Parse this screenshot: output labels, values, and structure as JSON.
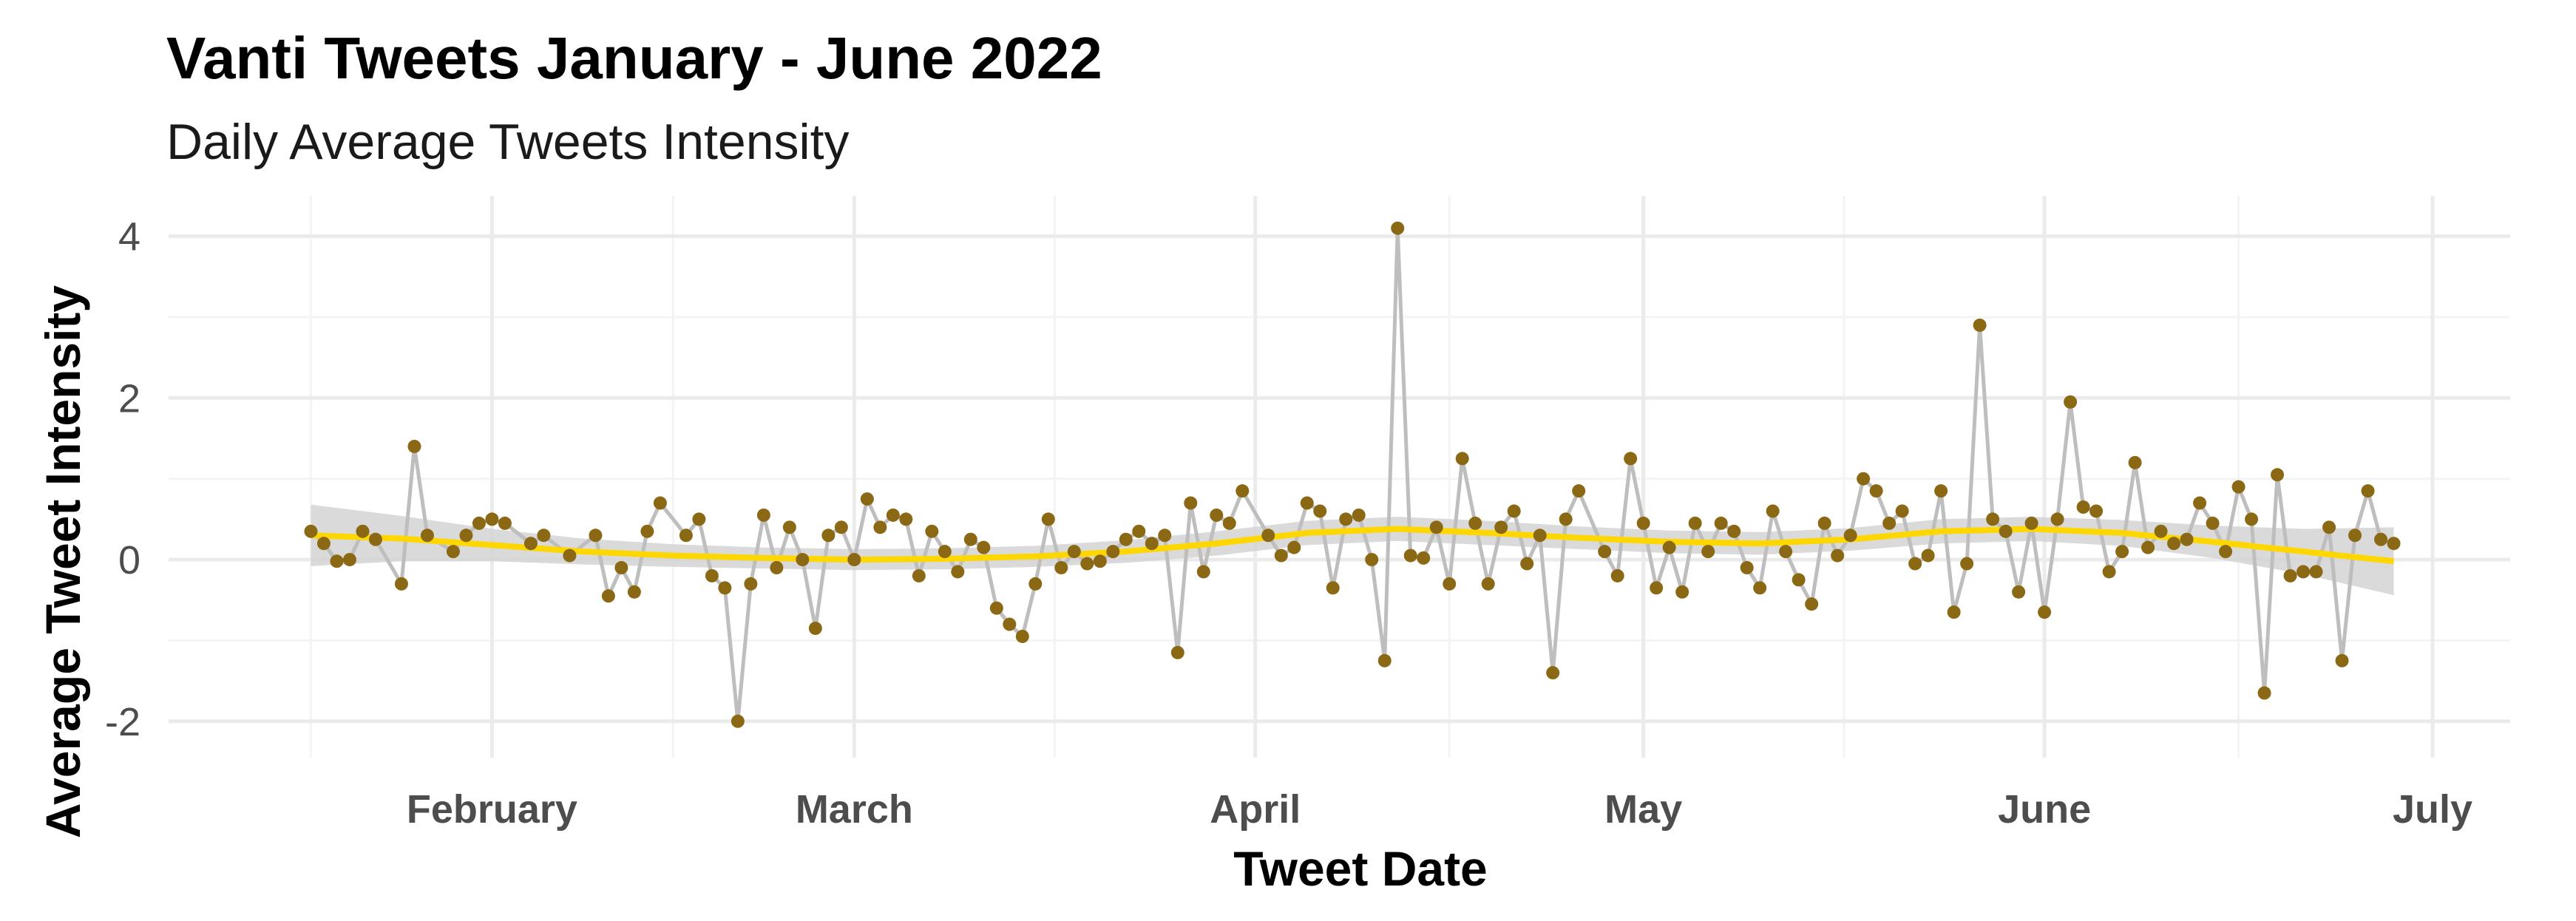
{
  "chart_data": {
    "type": "line",
    "title": "Vanti Tweets January - June 2022",
    "subtitle": "Daily Average Tweets Intensity",
    "xlabel": "Tweet Date",
    "ylabel": "Average Tweet Intensity",
    "xlim": [
      "2022-01-07",
      "2022-07-07"
    ],
    "ylim": [
      -2.45,
      4.5
    ],
    "x_ticks": [
      {
        "date": "2022-02-01",
        "label": "February"
      },
      {
        "date": "2022-03-01",
        "label": "March"
      },
      {
        "date": "2022-04-01",
        "label": "April"
      },
      {
        "date": "2022-05-01",
        "label": "May"
      },
      {
        "date": "2022-06-01",
        "label": "June"
      },
      {
        "date": "2022-07-01",
        "label": "July"
      }
    ],
    "y_ticks": [
      -2,
      0,
      2,
      4
    ],
    "grid": true,
    "colors": {
      "points": "#8B6914",
      "line": "#BEBEBE",
      "trend": "#FFD700",
      "band": "#D3D3D3",
      "grid_major": "#EBEBEB",
      "grid_minor": "#F4F4F4"
    },
    "series": [
      {
        "kind": "daily",
        "points": [
          [
            "2022-01-18",
            0.35
          ],
          [
            "2022-01-19",
            0.2
          ],
          [
            "2022-01-20",
            -0.02
          ],
          [
            "2022-01-21",
            0.0
          ],
          [
            "2022-01-22",
            0.35
          ],
          [
            "2022-01-23",
            0.25
          ],
          [
            "2022-01-25",
            -0.3
          ],
          [
            "2022-01-26",
            1.4
          ],
          [
            "2022-01-27",
            0.3
          ],
          [
            "2022-01-29",
            0.1
          ],
          [
            "2022-01-30",
            0.3
          ],
          [
            "2022-01-31",
            0.45
          ],
          [
            "2022-02-01",
            0.5
          ],
          [
            "2022-02-02",
            0.45
          ],
          [
            "2022-02-04",
            0.2
          ],
          [
            "2022-02-05",
            0.3
          ],
          [
            "2022-02-07",
            0.05
          ],
          [
            "2022-02-09",
            0.3
          ],
          [
            "2022-02-10",
            -0.45
          ],
          [
            "2022-02-11",
            -0.1
          ],
          [
            "2022-02-12",
            -0.4
          ],
          [
            "2022-02-13",
            0.35
          ],
          [
            "2022-02-14",
            0.7
          ],
          [
            "2022-02-16",
            0.3
          ],
          [
            "2022-02-17",
            0.5
          ],
          [
            "2022-02-18",
            -0.2
          ],
          [
            "2022-02-19",
            -0.35
          ],
          [
            "2022-02-20",
            -2.0
          ],
          [
            "2022-02-21",
            -0.3
          ],
          [
            "2022-02-22",
            0.55
          ],
          [
            "2022-02-23",
            -0.1
          ],
          [
            "2022-02-24",
            0.4
          ],
          [
            "2022-02-25",
            0.0
          ],
          [
            "2022-02-26",
            -0.85
          ],
          [
            "2022-02-27",
            0.3
          ],
          [
            "2022-02-28",
            0.4
          ],
          [
            "2022-03-01",
            0.0
          ],
          [
            "2022-03-02",
            0.75
          ],
          [
            "2022-03-03",
            0.4
          ],
          [
            "2022-03-04",
            0.55
          ],
          [
            "2022-03-05",
            0.5
          ],
          [
            "2022-03-06",
            -0.2
          ],
          [
            "2022-03-07",
            0.35
          ],
          [
            "2022-03-08",
            0.1
          ],
          [
            "2022-03-09",
            -0.15
          ],
          [
            "2022-03-10",
            0.25
          ],
          [
            "2022-03-11",
            0.15
          ],
          [
            "2022-03-12",
            -0.6
          ],
          [
            "2022-03-13",
            -0.8
          ],
          [
            "2022-03-14",
            -0.95
          ],
          [
            "2022-03-15",
            -0.3
          ],
          [
            "2022-03-16",
            0.5
          ],
          [
            "2022-03-17",
            -0.1
          ],
          [
            "2022-03-18",
            0.1
          ],
          [
            "2022-03-19",
            -0.05
          ],
          [
            "2022-03-20",
            -0.02
          ],
          [
            "2022-03-21",
            0.1
          ],
          [
            "2022-03-22",
            0.25
          ],
          [
            "2022-03-23",
            0.35
          ],
          [
            "2022-03-24",
            0.2
          ],
          [
            "2022-03-25",
            0.3
          ],
          [
            "2022-03-26",
            -1.15
          ],
          [
            "2022-03-27",
            0.7
          ],
          [
            "2022-03-28",
            -0.15
          ],
          [
            "2022-03-29",
            0.55
          ],
          [
            "2022-03-30",
            0.45
          ],
          [
            "2022-03-31",
            0.85
          ],
          [
            "2022-04-02",
            0.3
          ],
          [
            "2022-04-03",
            0.05
          ],
          [
            "2022-04-04",
            0.15
          ],
          [
            "2022-04-05",
            0.7
          ],
          [
            "2022-04-06",
            0.6
          ],
          [
            "2022-04-07",
            -0.35
          ],
          [
            "2022-04-08",
            0.5
          ],
          [
            "2022-04-09",
            0.55
          ],
          [
            "2022-04-10",
            0.0
          ],
          [
            "2022-04-11",
            -1.25
          ],
          [
            "2022-04-12",
            4.1
          ],
          [
            "2022-04-13",
            0.05
          ],
          [
            "2022-04-14",
            0.02
          ],
          [
            "2022-04-15",
            0.4
          ],
          [
            "2022-04-16",
            -0.3
          ],
          [
            "2022-04-17",
            1.25
          ],
          [
            "2022-04-18",
            0.45
          ],
          [
            "2022-04-19",
            -0.3
          ],
          [
            "2022-04-20",
            0.4
          ],
          [
            "2022-04-21",
            0.6
          ],
          [
            "2022-04-22",
            -0.05
          ],
          [
            "2022-04-23",
            0.3
          ],
          [
            "2022-04-24",
            -1.4
          ],
          [
            "2022-04-25",
            0.5
          ],
          [
            "2022-04-26",
            0.85
          ],
          [
            "2022-04-28",
            0.1
          ],
          [
            "2022-04-29",
            -0.2
          ],
          [
            "2022-04-30",
            1.25
          ],
          [
            "2022-05-01",
            0.45
          ],
          [
            "2022-05-02",
            -0.35
          ],
          [
            "2022-05-03",
            0.15
          ],
          [
            "2022-05-04",
            -0.4
          ],
          [
            "2022-05-05",
            0.45
          ],
          [
            "2022-05-06",
            0.1
          ],
          [
            "2022-05-07",
            0.45
          ],
          [
            "2022-05-08",
            0.35
          ],
          [
            "2022-05-09",
            -0.1
          ],
          [
            "2022-05-10",
            -0.35
          ],
          [
            "2022-05-11",
            0.6
          ],
          [
            "2022-05-12",
            0.1
          ],
          [
            "2022-05-13",
            -0.25
          ],
          [
            "2022-05-14",
            -0.55
          ],
          [
            "2022-05-15",
            0.45
          ],
          [
            "2022-05-16",
            0.05
          ],
          [
            "2022-05-17",
            0.3
          ],
          [
            "2022-05-18",
            1.0
          ],
          [
            "2022-05-19",
            0.85
          ],
          [
            "2022-05-20",
            0.45
          ],
          [
            "2022-05-21",
            0.6
          ],
          [
            "2022-05-22",
            -0.05
          ],
          [
            "2022-05-23",
            0.05
          ],
          [
            "2022-05-24",
            0.85
          ],
          [
            "2022-05-25",
            -0.65
          ],
          [
            "2022-05-26",
            -0.05
          ],
          [
            "2022-05-27",
            2.9
          ],
          [
            "2022-05-28",
            0.5
          ],
          [
            "2022-05-29",
            0.35
          ],
          [
            "2022-05-30",
            -0.4
          ],
          [
            "2022-05-31",
            0.45
          ],
          [
            "2022-06-01",
            -0.65
          ],
          [
            "2022-06-02",
            0.5
          ],
          [
            "2022-06-03",
            1.95
          ],
          [
            "2022-06-04",
            0.65
          ],
          [
            "2022-06-05",
            0.6
          ],
          [
            "2022-06-06",
            -0.15
          ],
          [
            "2022-06-07",
            0.1
          ],
          [
            "2022-06-08",
            1.2
          ],
          [
            "2022-06-09",
            0.15
          ],
          [
            "2022-06-10",
            0.35
          ],
          [
            "2022-06-11",
            0.2
          ],
          [
            "2022-06-12",
            0.25
          ],
          [
            "2022-06-13",
            0.7
          ],
          [
            "2022-06-14",
            0.45
          ],
          [
            "2022-06-15",
            0.1
          ],
          [
            "2022-06-16",
            0.9
          ],
          [
            "2022-06-17",
            0.5
          ],
          [
            "2022-06-18",
            -1.65
          ],
          [
            "2022-06-19",
            1.05
          ],
          [
            "2022-06-20",
            -0.2
          ],
          [
            "2022-06-21",
            -0.15
          ],
          [
            "2022-06-22",
            -0.15
          ],
          [
            "2022-06-23",
            0.4
          ],
          [
            "2022-06-24",
            -1.25
          ],
          [
            "2022-06-25",
            0.3
          ],
          [
            "2022-06-26",
            0.85
          ],
          [
            "2022-06-27",
            0.25
          ],
          [
            "2022-06-28",
            0.2
          ]
        ]
      },
      {
        "kind": "smooth",
        "points": [
          [
            "2022-01-18",
            0.3
          ],
          [
            "2022-01-25",
            0.26
          ],
          [
            "2022-02-01",
            0.18
          ],
          [
            "2022-02-08",
            0.1
          ],
          [
            "2022-02-15",
            0.05
          ],
          [
            "2022-02-22",
            0.02
          ],
          [
            "2022-03-01",
            0.0
          ],
          [
            "2022-03-08",
            0.01
          ],
          [
            "2022-03-15",
            0.04
          ],
          [
            "2022-03-22",
            0.1
          ],
          [
            "2022-03-29",
            0.2
          ],
          [
            "2022-04-05",
            0.33
          ],
          [
            "2022-04-12",
            0.38
          ],
          [
            "2022-04-19",
            0.33
          ],
          [
            "2022-04-26",
            0.27
          ],
          [
            "2022-05-03",
            0.22
          ],
          [
            "2022-05-10",
            0.2
          ],
          [
            "2022-05-17",
            0.25
          ],
          [
            "2022-05-24",
            0.35
          ],
          [
            "2022-05-31",
            0.38
          ],
          [
            "2022-06-07",
            0.33
          ],
          [
            "2022-06-14",
            0.22
          ],
          [
            "2022-06-21",
            0.1
          ],
          [
            "2022-06-28",
            -0.02
          ]
        ],
        "band_half_width": [
          0.38,
          0.28,
          0.2,
          0.16,
          0.14,
          0.13,
          0.13,
          0.13,
          0.13,
          0.14,
          0.15,
          0.15,
          0.15,
          0.15,
          0.14,
          0.14,
          0.14,
          0.14,
          0.15,
          0.15,
          0.16,
          0.2,
          0.28,
          0.42
        ]
      }
    ]
  }
}
